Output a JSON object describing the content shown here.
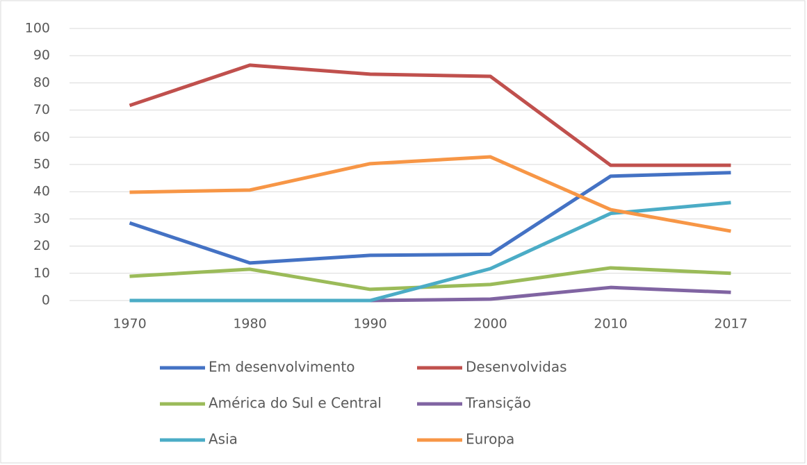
{
  "chart_data": {
    "type": "line",
    "categories": [
      "1970",
      "1980",
      "1990",
      "2000",
      "2010",
      "2017"
    ],
    "series": [
      {
        "name": "Em desenvolvimento",
        "color": "#4472c4",
        "values": [
          28.5,
          13.8,
          16.6,
          17,
          45.7,
          47
        ]
      },
      {
        "name": "Desenvolvidas",
        "color": "#c0504d",
        "values": [
          71.7,
          86.5,
          83.2,
          82.4,
          49.7,
          49.7
        ]
      },
      {
        "name": "América do Sul e Central",
        "color": "#9bbb59",
        "values": [
          8.9,
          11.5,
          4.1,
          5.9,
          12,
          10
        ]
      },
      {
        "name": "Transição",
        "color": "#8064a2",
        "values": [
          null,
          null,
          0,
          0.5,
          4.8,
          3
        ]
      },
      {
        "name": "Asia",
        "color": "#4bacc6",
        "values": [
          0,
          0,
          0,
          11.7,
          32,
          36
        ]
      },
      {
        "name": "Europa",
        "color": "#f79646",
        "values": [
          39.8,
          40.6,
          50.3,
          52.8,
          33.4,
          25.5
        ]
      }
    ],
    "ylim": [
      0,
      100
    ],
    "yticks": [
      0,
      10,
      20,
      30,
      40,
      50,
      60,
      70,
      80,
      90,
      100
    ],
    "grid": true,
    "legend": "bottom"
  }
}
